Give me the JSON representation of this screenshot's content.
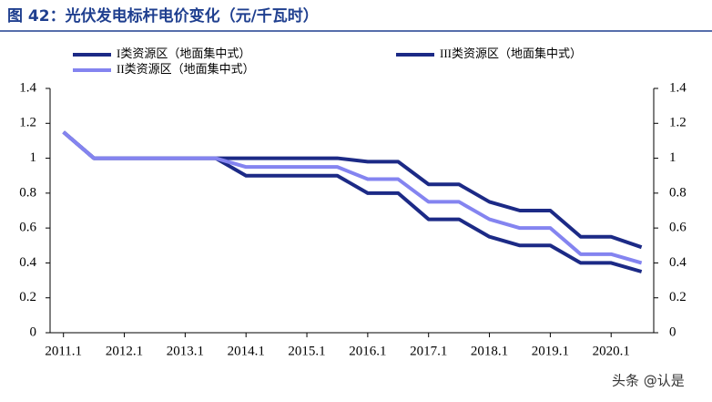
{
  "chart_data": {
    "type": "line",
    "title": "图 42：光伏发电标杆电价变化（元/千瓦时）",
    "watermark": "头条 @认是",
    "xlim": [
      2010.78,
      2020.7
    ],
    "xticks": [
      {
        "value": 2011,
        "label": "2011.1"
      },
      {
        "value": 2012,
        "label": "2012.1"
      },
      {
        "value": 2013,
        "label": "2013.1"
      },
      {
        "value": 2014,
        "label": "2014.1"
      },
      {
        "value": 2015,
        "label": "2015.1"
      },
      {
        "value": 2016,
        "label": "2016.1"
      },
      {
        "value": 2017,
        "label": "2017.1"
      },
      {
        "value": 2018,
        "label": "2018.1"
      },
      {
        "value": 2019,
        "label": "2019.1"
      },
      {
        "value": 2020,
        "label": "2020.1"
      }
    ],
    "ylim": [
      0,
      1.4
    ],
    "yticks": [
      0,
      0.2,
      0.4,
      0.6,
      0.8,
      1,
      1.2,
      1.4
    ],
    "y2lim": [
      0,
      1.4
    ],
    "y2ticks": [
      0,
      0.2,
      0.4,
      0.6,
      0.8,
      1,
      1.2,
      1.4
    ],
    "series": [
      {
        "name": "I类资源区（地面集中式）",
        "color": "#1c2a86",
        "x": [
          2011,
          2011.5,
          2013.5,
          2014,
          2015.5,
          2016,
          2016.5,
          2017,
          2017.5,
          2018,
          2018.5,
          2019,
          2019.5,
          2020,
          2020.5
        ],
        "values": [
          1.15,
          1.0,
          1.0,
          0.9,
          0.9,
          0.8,
          0.8,
          0.65,
          0.65,
          0.55,
          0.5,
          0.5,
          0.4,
          0.4,
          0.35
        ]
      },
      {
        "name": "III类资源区（地面集中式）",
        "color": "#1c2a86",
        "x": [
          2011,
          2011.5,
          2015.5,
          2016,
          2016.5,
          2017,
          2017.5,
          2018,
          2018.5,
          2019,
          2019.5,
          2020,
          2020.5
        ],
        "values": [
          1.15,
          1.0,
          1.0,
          0.98,
          0.98,
          0.85,
          0.85,
          0.75,
          0.7,
          0.7,
          0.55,
          0.55,
          0.49
        ]
      },
      {
        "name": "II类资源区（地面集中式）",
        "color": "#8484f0",
        "x": [
          2011,
          2011.5,
          2013.5,
          2014,
          2015.5,
          2016,
          2016.5,
          2017,
          2017.5,
          2018,
          2018.5,
          2019,
          2019.5,
          2020,
          2020.5
        ],
        "values": [
          1.15,
          1.0,
          1.0,
          0.95,
          0.95,
          0.88,
          0.88,
          0.75,
          0.75,
          0.65,
          0.6,
          0.6,
          0.45,
          0.45,
          0.4
        ]
      }
    ]
  }
}
